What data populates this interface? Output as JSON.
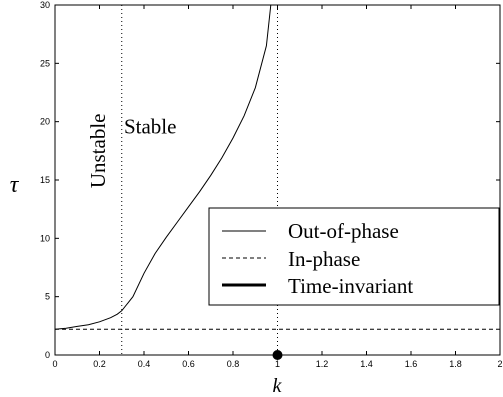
{
  "chart_data": {
    "type": "line",
    "title": "",
    "xlabel": "k",
    "ylabel": "τ",
    "xlim": [
      0,
      2
    ],
    "ylim": [
      0,
      30
    ],
    "xticks": [
      "0",
      "0.2",
      "0.4",
      "0.6",
      "0.8",
      "1",
      "1.2",
      "1.4",
      "1.6",
      "1.8",
      "2"
    ],
    "yticks": [
      "0",
      "5",
      "10",
      "15",
      "20",
      "25",
      "30"
    ],
    "grid": false,
    "legend_position": "lower-right",
    "series": [
      {
        "name": "Out-of-phase",
        "style": "solid-thin",
        "color": "#000000",
        "x": [
          0,
          0.05,
          0.1,
          0.15,
          0.2,
          0.25,
          0.28,
          0.3,
          0.35,
          0.4,
          0.45,
          0.5,
          0.55,
          0.6,
          0.65,
          0.7,
          0.75,
          0.8,
          0.85,
          0.9,
          0.95,
          0.97
        ],
        "y": [
          2.2,
          2.3,
          2.45,
          2.6,
          2.85,
          3.2,
          3.5,
          3.8,
          5.0,
          7.0,
          8.7,
          10.1,
          11.4,
          12.7,
          14.0,
          15.4,
          16.9,
          18.6,
          20.5,
          22.9,
          26.5,
          30
        ]
      },
      {
        "name": "In-phase",
        "style": "dashed",
        "color": "#000000",
        "x": [
          0,
          2
        ],
        "y": [
          2.2,
          2.2
        ]
      },
      {
        "name": "Time-invariant",
        "style": "point-thick",
        "color": "#000000",
        "x": [
          1
        ],
        "y": [
          0
        ]
      }
    ],
    "vertical_lines": [
      {
        "x": 0.3,
        "style": "dotted"
      },
      {
        "x": 1.0,
        "style": "dotted"
      }
    ],
    "annotations": [
      {
        "text": "Unstable",
        "x": 0.225,
        "y": 17.5,
        "rotate": -90
      },
      {
        "text": "Stable",
        "x": 0.31,
        "y": 19
      }
    ]
  }
}
